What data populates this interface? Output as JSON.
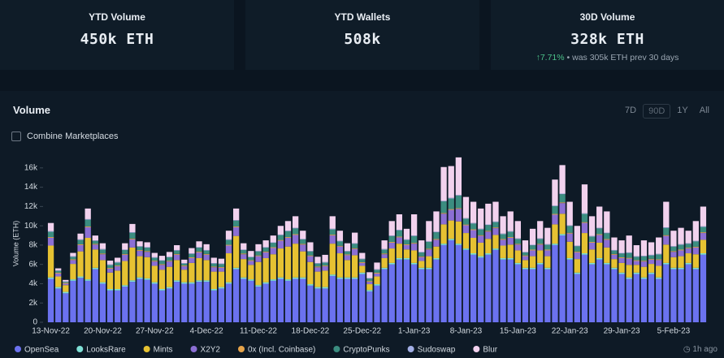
{
  "stats": [
    {
      "label": "YTD Volume",
      "value": "450k ETH"
    },
    {
      "label": "YTD Wallets",
      "value": "508k"
    },
    {
      "label": "30D Volume",
      "value": "328k ETH",
      "change": "7.71%",
      "note": "• was 305k ETH prev 30 days"
    }
  ],
  "panel": {
    "title": "Volume",
    "ranges": [
      "7D",
      "90D",
      "1Y",
      "All"
    ],
    "selected_range": "90D",
    "checkbox": "Combine Marketplaces",
    "updated": "1h ago"
  },
  "chart_data": {
    "type": "stacked_bar",
    "y_label": "Volume (ETH)",
    "grid": false,
    "ylim": [
      0,
      17500
    ],
    "yticks": [
      0,
      {
        "value": 2000,
        "label": "2k"
      },
      {
        "value": 4000,
        "label": "4k"
      },
      {
        "value": 6000,
        "label": "6k"
      },
      {
        "value": 8000,
        "label": "8k"
      },
      {
        "value": 10000,
        "label": "10k"
      },
      {
        "value": 12000,
        "label": "12k"
      },
      {
        "value": 14000,
        "label": "14k"
      },
      {
        "value": 16000,
        "label": "16k"
      }
    ],
    "categories": [
      "13-Nov-22",
      null,
      null,
      null,
      null,
      null,
      null,
      "20-Nov-22",
      null,
      null,
      null,
      null,
      null,
      null,
      "27-Nov-22",
      null,
      null,
      null,
      null,
      null,
      null,
      "4-Dec-22",
      null,
      null,
      null,
      null,
      null,
      null,
      "11-Dec-22",
      null,
      null,
      null,
      null,
      null,
      null,
      "18-Dec-22",
      null,
      null,
      null,
      null,
      null,
      null,
      "25-Dec-22",
      null,
      null,
      null,
      null,
      null,
      null,
      "1-Jan-23",
      null,
      null,
      null,
      null,
      null,
      null,
      "8-Jan-23",
      null,
      null,
      null,
      null,
      null,
      null,
      "15-Jan-23",
      null,
      null,
      null,
      null,
      null,
      null,
      "22-Jan-23",
      null,
      null,
      null,
      null,
      null,
      null,
      "29-Jan-23",
      null,
      null,
      null,
      null,
      null,
      null,
      "5-Feb-23",
      null,
      null,
      null,
      null
    ],
    "series": [
      {
        "name": "OpenSea",
        "color": "#6b72ef",
        "values": [
          4500,
          3500,
          3000,
          4300,
          4600,
          4300,
          5500,
          4000,
          3300,
          3300,
          3700,
          4200,
          4500,
          4400,
          4000,
          3300,
          3500,
          4200,
          4000,
          4000,
          4200,
          4200,
          3300,
          3500,
          4000,
          5500,
          4500,
          4300,
          3700,
          4000,
          4300,
          4500,
          4300,
          4500,
          4500,
          3800,
          3500,
          3500,
          4800,
          4500,
          4500,
          4500,
          5000,
          3200,
          3800,
          5500,
          6000,
          6500,
          6500,
          6000,
          5500,
          5500,
          6500,
          8000,
          8500,
          8000,
          7500,
          7000,
          6700,
          7000,
          7500,
          6500,
          6500,
          6000,
          5500,
          5500,
          6000,
          5500,
          8000,
          9000,
          6500,
          5000,
          7000,
          6000,
          6500,
          6000,
          5500,
          5000,
          4500,
          5000,
          4500,
          5000,
          4500,
          6000,
          5500,
          5500,
          6000,
          5500,
          7000
        ]
      },
      {
        "name": "LooksRare",
        "color": "#7fe0d6",
        "values": [
          150,
          150,
          150,
          150,
          150,
          150,
          150,
          150,
          150,
          150,
          150,
          150,
          150,
          150,
          150,
          150,
          150,
          150,
          150,
          150,
          150,
          150,
          150,
          150,
          150,
          150,
          150,
          150,
          150,
          150,
          150,
          150,
          150,
          150,
          150,
          150,
          150,
          150,
          150,
          150,
          150,
          150,
          150,
          150,
          150,
          150,
          150,
          150,
          150,
          150,
          150,
          150,
          150,
          150,
          150,
          150,
          150,
          150,
          150,
          150,
          150,
          150,
          150,
          150,
          150,
          150,
          150,
          150,
          150,
          150,
          150,
          150,
          150,
          150,
          150,
          150,
          150,
          150,
          150,
          150,
          150,
          150,
          150,
          150,
          150,
          150,
          150,
          150,
          150
        ]
      },
      {
        "name": "Mints",
        "color": "#e6c232",
        "values": [
          3300,
          1100,
          700,
          1600,
          2600,
          4300,
          1900,
          2300,
          1700,
          1900,
          2500,
          3400,
          2200,
          2200,
          1700,
          2000,
          2100,
          2100,
          1300,
          2000,
          2300,
          2100,
          1800,
          1600,
          3000,
          3300,
          1900,
          1500,
          2400,
          2500,
          2600,
          3000,
          3400,
          3500,
          2700,
          2300,
          1600,
          1700,
          3200,
          2500,
          1800,
          2300,
          700,
          600,
          800,
          1000,
          1500,
          1500,
          900,
          1300,
          700,
          1200,
          1200,
          2000,
          1900,
          2300,
          1600,
          1600,
          1400,
          1500,
          1400,
          1300,
          1400,
          1300,
          800,
          1200,
          1300,
          1200,
          2000,
          2100,
          1700,
          1400,
          2100,
          1400,
          1600,
          1600,
          900,
          1000,
          1300,
          800,
          1100,
          900,
          1200,
          1900,
          1100,
          1200,
          1000,
          1400,
          1400
        ]
      },
      {
        "name": "X2Y2",
        "color": "#8b6fd4",
        "values": [
          800,
          300,
          150,
          400,
          650,
          1100,
          500,
          600,
          400,
          450,
          650,
          850,
          550,
          550,
          450,
          500,
          550,
          550,
          350,
          500,
          600,
          550,
          450,
          400,
          800,
          900,
          500,
          400,
          600,
          600,
          650,
          800,
          900,
          900,
          700,
          600,
          450,
          450,
          850,
          700,
          500,
          650,
          300,
          250,
          300,
          400,
          600,
          650,
          450,
          700,
          400,
          700,
          700,
          1100,
          1100,
          1300,
          800,
          800,
          700,
          750,
          700,
          600,
          700,
          600,
          400,
          600,
          600,
          600,
          1000,
          1100,
          850,
          700,
          1050,
          700,
          800,
          800,
          450,
          500,
          650,
          400,
          550,
          450,
          600,
          900,
          550,
          600,
          500,
          700,
          700
        ]
      },
      {
        "name": "0x (Incl. Coinbase)",
        "color": "#e6a44a",
        "values": [
          80,
          80,
          80,
          80,
          80,
          80,
          80,
          80,
          80,
          80,
          80,
          80,
          80,
          80,
          80,
          80,
          80,
          80,
          80,
          80,
          80,
          80,
          80,
          80,
          80,
          80,
          80,
          80,
          80,
          80,
          80,
          80,
          80,
          80,
          80,
          80,
          80,
          80,
          80,
          80,
          80,
          80,
          80,
          80,
          80,
          80,
          80,
          80,
          80,
          80,
          80,
          80,
          80,
          80,
          80,
          80,
          80,
          80,
          80,
          80,
          80,
          80,
          80,
          80,
          80,
          80,
          80,
          80,
          80,
          80,
          80,
          80,
          80,
          80,
          80,
          80,
          80,
          80,
          80,
          80,
          80,
          80,
          80,
          80,
          80,
          80,
          80,
          80,
          80
        ]
      },
      {
        "name": "CryptoPunks",
        "color": "#3b8d80",
        "values": [
          550,
          200,
          100,
          250,
          450,
          700,
          300,
          400,
          300,
          300,
          400,
          600,
          350,
          350,
          300,
          350,
          350,
          350,
          200,
          350,
          400,
          350,
          300,
          300,
          500,
          600,
          350,
          300,
          400,
          400,
          450,
          500,
          600,
          600,
          450,
          400,
          300,
          300,
          550,
          450,
          300,
          450,
          300,
          250,
          300,
          400,
          600,
          650,
          450,
          700,
          400,
          700,
          700,
          1200,
          1100,
          1300,
          600,
          600,
          600,
          600,
          550,
          500,
          550,
          500,
          300,
          450,
          500,
          500,
          800,
          850,
          700,
          550,
          850,
          550,
          600,
          600,
          350,
          400,
          500,
          350,
          450,
          350,
          500,
          750,
          450,
          500,
          400,
          550,
          550
        ]
      },
      {
        "name": "Sudoswap",
        "color": "#a3afe6",
        "values": [
          60,
          60,
          60,
          60,
          60,
          60,
          60,
          60,
          60,
          60,
          60,
          60,
          60,
          60,
          60,
          60,
          60,
          60,
          60,
          60,
          60,
          60,
          60,
          60,
          60,
          60,
          60,
          60,
          60,
          60,
          60,
          60,
          60,
          60,
          60,
          60,
          60,
          60,
          60,
          60,
          60,
          60,
          60,
          60,
          60,
          60,
          60,
          60,
          60,
          60,
          60,
          60,
          60,
          60,
          60,
          60,
          60,
          60,
          60,
          60,
          60,
          60,
          60,
          60,
          60,
          60,
          60,
          60,
          60,
          60,
          60,
          60,
          60,
          60,
          60,
          60,
          60,
          60,
          60,
          60,
          60,
          60,
          60,
          60,
          60,
          60,
          60,
          60,
          60
        ]
      },
      {
        "name": "Blur",
        "color": "#f2d2ee",
        "values": [
          850,
          200,
          150,
          350,
          600,
          1100,
          500,
          600,
          400,
          450,
          650,
          850,
          500,
          500,
          450,
          450,
          500,
          500,
          350,
          550,
          600,
          600,
          550,
          500,
          900,
          1200,
          650,
          600,
          700,
          700,
          700,
          900,
          1000,
          1200,
          850,
          900,
          650,
          750,
          1300,
          1050,
          800,
          1100,
          600,
          600,
          700,
          900,
          1500,
          1600,
          1100,
          2200,
          1200,
          2100,
          2100,
          3500,
          3300,
          3900,
          2200,
          2200,
          2100,
          2150,
          2050,
          1800,
          2050,
          1800,
          1200,
          1650,
          1800,
          1700,
          2700,
          2950,
          2450,
          2050,
          3000,
          2050,
          2200,
          2200,
          1300,
          1300,
          1750,
          1150,
          1600,
          1300,
          1700,
          2650,
          1600,
          1700,
          1300,
          2050,
          2050
        ]
      }
    ]
  }
}
